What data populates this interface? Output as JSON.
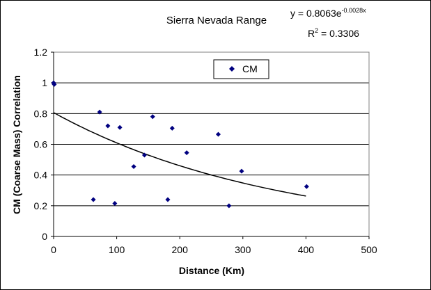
{
  "chart_data": {
    "type": "scatter",
    "title": "Sierra Nevada Range",
    "xlabel": "Distance (Km)",
    "ylabel": "CM (Coarse Mass) Correlation",
    "xlim": [
      0,
      500
    ],
    "ylim": [
      0,
      1.2
    ],
    "x_ticks": [
      "0",
      "100",
      "200",
      "300",
      "400",
      "500"
    ],
    "y_ticks": [
      "0",
      "0.2",
      "0.4",
      "0.6",
      "0.8",
      "1",
      "1.2"
    ],
    "grid": "horizontal major gridlines",
    "legend_position": "top-center",
    "series": [
      {
        "name": "CM",
        "marker": "diamond",
        "color": "#000080",
        "points": [
          {
            "x": 0,
            "y": 1.0
          },
          {
            "x": 1,
            "y": 0.99
          },
          {
            "x": 63,
            "y": 0.24
          },
          {
            "x": 73,
            "y": 0.81
          },
          {
            "x": 86,
            "y": 0.72
          },
          {
            "x": 97,
            "y": 0.215
          },
          {
            "x": 105,
            "y": 0.71
          },
          {
            "x": 127,
            "y": 0.455
          },
          {
            "x": 144,
            "y": 0.53
          },
          {
            "x": 157,
            "y": 0.78
          },
          {
            "x": 181,
            "y": 0.24
          },
          {
            "x": 188,
            "y": 0.705
          },
          {
            "x": 211,
            "y": 0.545
          },
          {
            "x": 261,
            "y": 0.665
          },
          {
            "x": 278,
            "y": 0.2
          },
          {
            "x": 298,
            "y": 0.425
          },
          {
            "x": 401,
            "y": 0.325
          }
        ]
      }
    ],
    "trendline": {
      "type": "exponential",
      "a": 0.8063,
      "b": -0.0028,
      "x_range": [
        0,
        400
      ],
      "equation_prefix": "y = 0.8063e",
      "equation_exponent": "-0.0028x",
      "r2_prefix": "R",
      "r2_exponent": "2",
      "r2_suffix": " = 0.3306"
    }
  }
}
